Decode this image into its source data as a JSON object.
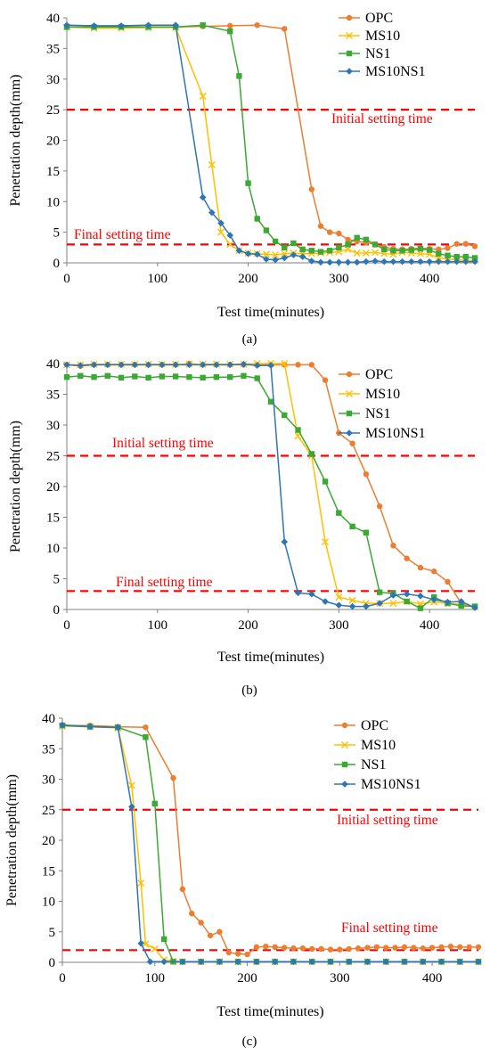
{
  "colors": {
    "opc": "#ED7D31",
    "ms10": "#FFC000",
    "ns1": "#3BA934",
    "ms10ns1": "#2E75B6",
    "ref_line": "#FF0000"
  },
  "chart_data": [
    {
      "type": "line",
      "panel_label": "(a)",
      "xlabel": "Test time(minutes)",
      "ylabel": "Penetration depth(mm)",
      "xlim": [
        0,
        450
      ],
      "ylim": [
        0,
        40
      ],
      "xticks": [
        "0",
        "100",
        "200",
        "300",
        "400"
      ],
      "yticks": [
        "0",
        "5",
        "10",
        "15",
        "20",
        "25",
        "30",
        "35",
        "40"
      ],
      "legend_position": "top-right",
      "reference_lines": [
        {
          "label": "Initial setting time",
          "y": 25
        },
        {
          "label": "Final setting time",
          "y": 3
        }
      ],
      "series": [
        {
          "name": "OPC",
          "color_key": "opc",
          "marker": "circle",
          "x": [
            0,
            30,
            60,
            90,
            120,
            150,
            180,
            210,
            240,
            270,
            280,
            290,
            300,
            310,
            320,
            330,
            340,
            350,
            360,
            370,
            380,
            390,
            400,
            410,
            420,
            430,
            440,
            450
          ],
          "y": [
            38.5,
            38.5,
            38.5,
            38.5,
            38.5,
            38.6,
            38.7,
            38.8,
            38.2,
            12,
            6,
            5,
            4.8,
            3.8,
            3.5,
            3.3,
            3.0,
            2.6,
            2.3,
            2.2,
            2.3,
            2.4,
            2.3,
            2.2,
            2.4,
            3.1,
            3.1,
            2.7
          ]
        },
        {
          "name": "MS10",
          "color_key": "ms10",
          "marker": "x",
          "x": [
            0,
            30,
            60,
            90,
            120,
            150,
            160,
            170,
            180,
            190,
            200,
            210,
            220,
            230,
            240,
            250,
            260,
            270,
            280,
            290,
            300,
            310,
            320,
            330,
            340,
            350,
            360,
            370,
            380,
            390,
            400,
            410,
            420,
            430,
            440,
            450
          ],
          "y": [
            38.5,
            38.3,
            38.3,
            38.4,
            38.4,
            27.2,
            16,
            5,
            3,
            2,
            1.6,
            1.5,
            1.4,
            1.3,
            1.5,
            1.6,
            1.5,
            1.5,
            1.6,
            1.7,
            1.8,
            2.2,
            1.6,
            1.6,
            1.7,
            1.5,
            1.4,
            1.7,
            1.6,
            1.5,
            1.4,
            0.8,
            0.6,
            0.5,
            0.4,
            0.4
          ]
        },
        {
          "name": "NS1",
          "color_key": "ns1",
          "marker": "square",
          "x": [
            0,
            30,
            60,
            90,
            120,
            150,
            180,
            190,
            200,
            210,
            220,
            230,
            240,
            250,
            260,
            270,
            280,
            290,
            300,
            310,
            320,
            330,
            340,
            350,
            360,
            370,
            380,
            390,
            400,
            410,
            420,
            430,
            440,
            450
          ],
          "y": [
            38.5,
            38.5,
            38.5,
            38.5,
            38.5,
            38.8,
            37.8,
            30.5,
            13,
            7.2,
            5.3,
            3.5,
            2.5,
            3.2,
            2.2,
            2.0,
            1.8,
            2.0,
            2.5,
            3.0,
            4.1,
            3.8,
            3.0,
            2.2,
            2.0,
            2.0,
            2.1,
            2.3,
            2.1,
            1.5,
            1.2,
            1.0,
            1.0,
            0.8
          ]
        },
        {
          "name": "MS10NS1",
          "color_key": "ms10ns1",
          "marker": "diamond",
          "x": [
            0,
            30,
            60,
            90,
            120,
            150,
            160,
            170,
            180,
            190,
            200,
            210,
            220,
            230,
            240,
            250,
            260,
            270,
            280,
            290,
            300,
            310,
            320,
            330,
            340,
            350,
            360,
            370,
            380,
            390,
            400,
            410,
            420,
            430,
            440,
            450
          ],
          "y": [
            38.8,
            38.7,
            38.7,
            38.8,
            38.8,
            10.7,
            8.2,
            6.5,
            4.5,
            2,
            1.5,
            1.4,
            0.6,
            0.5,
            0.8,
            1.3,
            1.0,
            0.3,
            0.1,
            0.1,
            0.1,
            0.1,
            0.1,
            0.2,
            0.3,
            0.2,
            0.2,
            0.2,
            0.2,
            0.2,
            0.2,
            0.2,
            0.2,
            0.2,
            0.2,
            0.2
          ]
        }
      ]
    },
    {
      "type": "line",
      "panel_label": "(b)",
      "xlabel": "Test time(minutes)",
      "ylabel": "Penetration depth(mm)",
      "xlim": [
        0,
        450
      ],
      "ylim": [
        0,
        40
      ],
      "xticks": [
        "0",
        "100",
        "200",
        "300",
        "400"
      ],
      "yticks": [
        "0",
        "5",
        "10",
        "15",
        "20",
        "25",
        "30",
        "35",
        "40"
      ],
      "legend_position": "top-right",
      "reference_lines": [
        {
          "label": "Initial setting time",
          "y": 25
        },
        {
          "label": "Final setting time",
          "y": 3
        }
      ],
      "series": [
        {
          "name": "OPC",
          "color_key": "opc",
          "marker": "circle",
          "x": [
            0,
            15,
            30,
            45,
            60,
            75,
            90,
            105,
            120,
            135,
            150,
            165,
            180,
            195,
            210,
            225,
            240,
            255,
            270,
            285,
            300,
            315,
            330,
            345,
            360,
            375,
            390,
            405,
            420,
            435,
            450
          ],
          "y": [
            39.8,
            39.6,
            39.8,
            39.8,
            39.8,
            39.8,
            39.8,
            39.8,
            39.8,
            40,
            39.8,
            39.8,
            39.8,
            39.8,
            39.8,
            39.8,
            39.8,
            39.8,
            39.8,
            37.3,
            28.7,
            27,
            22,
            16.8,
            10.4,
            8.3,
            6.8,
            6.2,
            4.5,
            1,
            0.3
          ]
        },
        {
          "name": "MS10",
          "color_key": "ms10",
          "marker": "x",
          "x": [
            0,
            15,
            30,
            45,
            60,
            75,
            90,
            105,
            120,
            135,
            150,
            165,
            180,
            195,
            210,
            225,
            240,
            255,
            270,
            285,
            300,
            315,
            330,
            345,
            360,
            375,
            390,
            405,
            420,
            435,
            450
          ],
          "y": [
            39.8,
            39.8,
            39.9,
            39.9,
            39.9,
            39.9,
            39.9,
            39.9,
            39.9,
            39.9,
            39.9,
            39.9,
            39.9,
            39.9,
            40,
            40,
            40,
            28.2,
            25,
            11,
            2.0,
            1.5,
            1.0,
            1.0,
            1.0,
            1.3,
            0.9,
            1.2,
            1.0,
            0.8,
            0.4
          ]
        },
        {
          "name": "NS1",
          "color_key": "ns1",
          "marker": "square",
          "x": [
            0,
            15,
            30,
            45,
            60,
            75,
            90,
            105,
            120,
            135,
            150,
            165,
            180,
            195,
            210,
            225,
            240,
            255,
            270,
            285,
            300,
            315,
            330,
            345,
            360,
            375,
            390,
            405,
            420,
            435,
            450
          ],
          "y": [
            37.8,
            38,
            37.8,
            38,
            37.7,
            37.9,
            37.7,
            37.9,
            37.9,
            37.8,
            37.7,
            37.8,
            37.8,
            38,
            37.6,
            33.8,
            31.6,
            29.2,
            25.3,
            20.8,
            15.7,
            13.5,
            12.5,
            2.8,
            2.6,
            1.3,
            0.2,
            2,
            1,
            0.6,
            0.5
          ]
        },
        {
          "name": "MS10NS1",
          "color_key": "ms10ns1",
          "marker": "diamond",
          "x": [
            0,
            15,
            30,
            45,
            60,
            75,
            90,
            105,
            120,
            135,
            150,
            165,
            180,
            195,
            210,
            225,
            240,
            255,
            270,
            285,
            300,
            315,
            330,
            345,
            360,
            375,
            390,
            405,
            420,
            435,
            450
          ],
          "y": [
            39.8,
            39.7,
            39.8,
            39.8,
            39.8,
            39.8,
            39.8,
            39.8,
            39.8,
            39.8,
            39.8,
            39.8,
            39.8,
            39.9,
            39.7,
            39.7,
            11,
            2.7,
            2.5,
            1.3,
            0.7,
            0.5,
            0.5,
            1.0,
            2.3,
            2.5,
            2.2,
            1.6,
            1.2,
            1.3,
            0.3
          ]
        }
      ]
    },
    {
      "type": "line",
      "panel_label": "(c)",
      "xlabel": "Test time(minutes)",
      "ylabel": "Penetration depth(mm)",
      "xlim": [
        0,
        450
      ],
      "ylim": [
        0,
        40
      ],
      "xticks": [
        "0",
        "100",
        "200",
        "300",
        "400"
      ],
      "yticks": [
        "0",
        "5",
        "10",
        "15",
        "20",
        "25",
        "30",
        "35",
        "40"
      ],
      "legend_position": "top-right",
      "reference_lines": [
        {
          "label": "Initial setting time",
          "y": 25
        },
        {
          "label": "Final setting time",
          "y": 2
        }
      ],
      "series": [
        {
          "name": "OPC",
          "color_key": "opc",
          "marker": "circle",
          "x": [
            0,
            30,
            60,
            90,
            120,
            130,
            140,
            150,
            160,
            170,
            180,
            190,
            200,
            210,
            220,
            230,
            240,
            250,
            260,
            270,
            280,
            290,
            300,
            310,
            320,
            330,
            340,
            350,
            360,
            370,
            380,
            390,
            400,
            410,
            420,
            430,
            440,
            450
          ],
          "y": [
            38.8,
            38.8,
            38.6,
            38.5,
            30.2,
            12,
            8,
            6.5,
            4.4,
            5,
            1.6,
            1.4,
            1.3,
            2.5,
            2.6,
            2.5,
            2.4,
            2.3,
            2.3,
            2.2,
            2.2,
            2.1,
            2.1,
            2.2,
            2.3,
            2.4,
            2.5,
            2.4,
            2.4,
            2.5,
            2.4,
            2.3,
            2.4,
            2.5,
            2.6,
            2.5,
            2.5,
            2.5
          ]
        },
        {
          "name": "MS10",
          "color_key": "ms10",
          "marker": "x",
          "x": [
            0,
            30,
            60,
            75,
            85,
            90,
            100,
            110,
            120,
            130,
            150,
            170,
            190,
            210,
            230,
            250,
            270,
            290,
            310,
            330,
            350,
            370,
            390,
            410,
            430,
            450
          ],
          "y": [
            38.7,
            38.6,
            38.4,
            29,
            13,
            3,
            2.2,
            0.4,
            0.2,
            0.1,
            0.1,
            0.1,
            0.1,
            0.1,
            0.1,
            0.1,
            0.1,
            0.1,
            0.1,
            0.1,
            0.1,
            0.1,
            0.1,
            0.1,
            0.1,
            0.1
          ]
        },
        {
          "name": "NS1",
          "color_key": "ns1",
          "marker": "square",
          "x": [
            0,
            30,
            60,
            90,
            100,
            110,
            120,
            130,
            150,
            170,
            190,
            210,
            230,
            250,
            270,
            290,
            310,
            330,
            350,
            370,
            390,
            410,
            430,
            450
          ],
          "y": [
            38.8,
            38.6,
            38.5,
            36.9,
            26,
            3.8,
            0.1,
            0.1,
            0.1,
            0.1,
            0.1,
            0.1,
            0.1,
            0.1,
            0.1,
            0.1,
            0.1,
            0.1,
            0.1,
            0.1,
            0.1,
            0.1,
            0.1,
            0.1
          ]
        },
        {
          "name": "MS10NS1",
          "color_key": "ms10ns1",
          "marker": "diamond",
          "x": [
            0,
            30,
            60,
            75,
            85,
            95,
            110,
            130,
            150,
            170,
            190,
            210,
            230,
            250,
            270,
            290,
            310,
            330,
            350,
            370,
            390,
            410,
            430,
            450
          ],
          "y": [
            38.9,
            38.6,
            38.5,
            25.5,
            3.1,
            0.1,
            0.1,
            0.1,
            0.1,
            0.1,
            0.1,
            0.1,
            0.1,
            0.1,
            0.1,
            0.1,
            0.1,
            0.1,
            0.1,
            0.1,
            0.1,
            0.1,
            0.1,
            0.1
          ]
        }
      ]
    }
  ]
}
